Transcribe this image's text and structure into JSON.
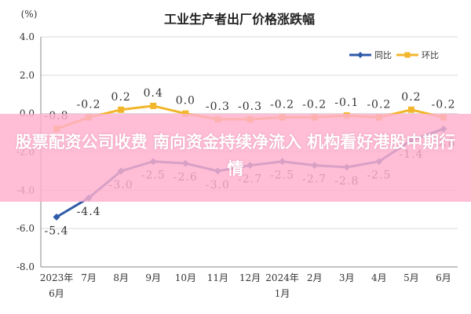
{
  "chart_data": {
    "type": "line",
    "title": "工业生产者出厂价格涨跌幅",
    "ylabel": "(%)",
    "ylim": [
      -8.0,
      4.0
    ],
    "y_ticks": [
      "4.0",
      "2.0",
      "0.0",
      "-2.0",
      "-4.0",
      "-6.0",
      "-8.0"
    ],
    "y_tick_values": [
      4,
      2,
      0,
      -2,
      -4,
      -6,
      -8
    ],
    "categories": [
      "2023年6月",
      "7月",
      "8月",
      "9月",
      "10月",
      "11月",
      "12月",
      "2024年1月",
      "2月",
      "3月",
      "4月",
      "5月",
      "6月"
    ],
    "category_lines": [
      [
        "2023年",
        "6月"
      ],
      [
        "7月"
      ],
      [
        "8月"
      ],
      [
        "9月"
      ],
      [
        "10月"
      ],
      [
        "11月"
      ],
      [
        "12月"
      ],
      [
        "2024年",
        "1月"
      ],
      [
        "2月"
      ],
      [
        "3月"
      ],
      [
        "4月"
      ],
      [
        "5月"
      ],
      [
        "6月"
      ]
    ],
    "grid": true,
    "legend": "top-right",
    "series": [
      {
        "name": "同比",
        "color": "#2e5aa8",
        "values": [
          -5.4,
          -4.4,
          -3.0,
          -2.5,
          -2.6,
          -3.0,
          -2.7,
          -2.5,
          -2.7,
          -2.8,
          -2.5,
          -1.4,
          -0.8
        ],
        "labels": [
          "-5.4",
          "-4.4",
          "-3.0",
          "-2.5",
          "-2.6",
          "-3.0",
          "-2.7",
          "-2.5",
          "-2.7",
          "-2.8",
          "-2.5",
          "-1.4",
          "-0.8"
        ]
      },
      {
        "name": "环比",
        "color": "#f2b62c",
        "values": [
          -0.8,
          -0.2,
          0.2,
          0.4,
          0.0,
          -0.3,
          -0.3,
          -0.2,
          -0.2,
          -0.1,
          -0.2,
          0.2,
          -0.2
        ],
        "labels": [
          "-0.8",
          "-0.2",
          "0.2",
          "0.4",
          "0.0",
          "-0.3",
          "-0.3",
          "-0.2",
          "-0.2",
          "-0.1",
          "-0.2",
          "0.2",
          "-0.2"
        ]
      }
    ]
  },
  "overlay": {
    "text": "股票配资公司收费 南向资金持续净流入 机构看好港股中期行情",
    "color": "#ffb0cd"
  }
}
